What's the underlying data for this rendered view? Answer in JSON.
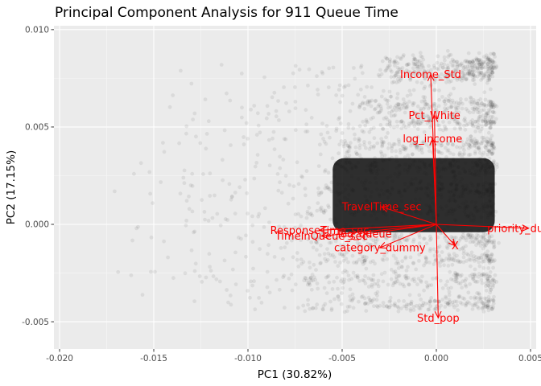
{
  "chart_data": {
    "type": "scatter",
    "title": "Principal Component Analysis for 911 Queue Time",
    "xlabel": "PC1 (30.82%)",
    "ylabel": "PC2 (17.15%)",
    "xlim": [
      -0.0203,
      0.0053
    ],
    "ylim": [
      -0.0064,
      0.0102
    ],
    "x_ticks": [
      {
        "value": -0.02,
        "label": "-0.020"
      },
      {
        "value": -0.015,
        "label": "-0.015"
      },
      {
        "value": -0.01,
        "label": "-0.010"
      },
      {
        "value": -0.005,
        "label": "-0.005"
      },
      {
        "value": 0.0,
        "label": "0.000"
      },
      {
        "value": 0.005,
        "label": "0.005"
      }
    ],
    "y_ticks": [
      {
        "value": -0.005,
        "label": "-0.005"
      },
      {
        "value": 0.0,
        "label": "0.000"
      },
      {
        "value": 0.005,
        "label": "0.005"
      },
      {
        "value": 0.01,
        "label": "0.010"
      }
    ],
    "grid": true,
    "point_color": "#000000",
    "loading_color": "#ff0000",
    "panel_color": "#ebebeb",
    "scores_description": {
      "bands_y": [
        0.0083,
        0.0077,
        0.0061,
        0.0052,
        0.004,
        0.003,
        0.0018,
        0.0008,
        -0.0008,
        -0.0018,
        -0.0029,
        -0.0041
      ],
      "x_right": 0.003,
      "x_left_min": -0.0185
    },
    "loadings": [
      {
        "label": "Income_Std",
        "x": -0.0003,
        "y": 0.0077
      },
      {
        "label": "Pct_White",
        "x": -0.0001,
        "y": 0.0056
      },
      {
        "label": "log_income",
        "x": -0.0002,
        "y": 0.0044
      },
      {
        "label": "TravelTime_sec",
        "x": -0.0029,
        "y": 0.0009
      },
      {
        "label": "priority_dummy",
        "x": 0.0049,
        "y": -0.0002
      },
      {
        "label": "ResponseTime_sec",
        "x": -0.0062,
        "y": -0.0003
      },
      {
        "label": "log_queue",
        "x": -0.0038,
        "y": -0.0005
      },
      {
        "label": "TimeInQueue_sec",
        "x": -0.0061,
        "y": -0.0006
      },
      {
        "label": "category_dummy",
        "x": -0.003,
        "y": -0.0012
      },
      {
        "label": "X",
        "x": 0.001,
        "y": -0.0011
      },
      {
        "label": "Std_pop",
        "x": 0.0001,
        "y": -0.0048
      }
    ]
  }
}
